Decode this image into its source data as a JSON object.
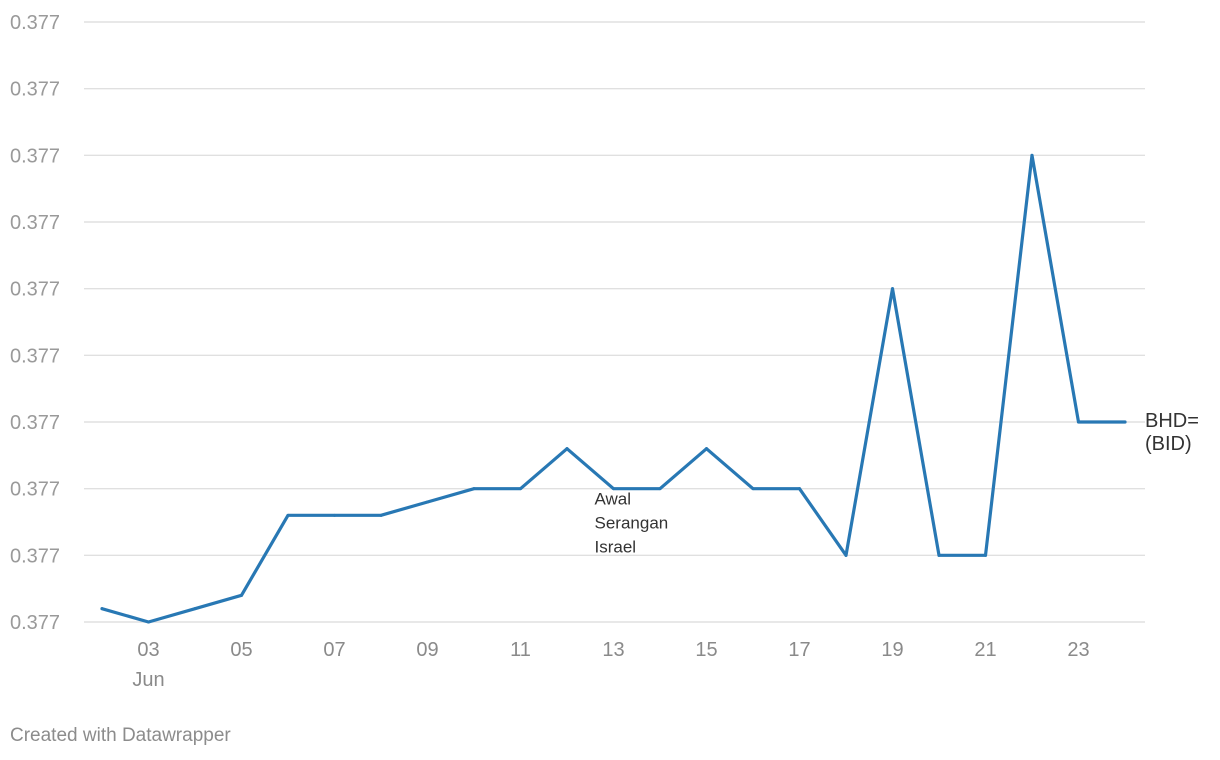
{
  "chart_data": {
    "type": "line",
    "title": "",
    "xlabel": "",
    "ylabel": "",
    "x": [
      "2024-06-02",
      "2024-06-03",
      "2024-06-04",
      "2024-06-05",
      "2024-06-06",
      "2024-06-07",
      "2024-06-08",
      "2024-06-09",
      "2024-06-10",
      "2024-06-11",
      "2024-06-12",
      "2024-06-13",
      "2024-06-14",
      "2024-06-15",
      "2024-06-16",
      "2024-06-17",
      "2024-06-18",
      "2024-06-19",
      "2024-06-20",
      "2024-06-21",
      "2024-06-22",
      "2024-06-23",
      "2024-06-24"
    ],
    "series": [
      {
        "name": "BHD= (BID)",
        "color": "#2878b4",
        "values": [
          0.37701,
          0.377,
          0.37701,
          0.37702,
          0.37708,
          0.37708,
          0.37708,
          0.37709,
          0.3771,
          0.3771,
          0.37713,
          0.3771,
          0.3771,
          0.37713,
          0.3771,
          0.3771,
          0.37705,
          0.37725,
          0.37705,
          0.37705,
          0.37735,
          0.37715,
          0.37715
        ]
      }
    ],
    "ylim": [
      0.377,
      0.37745
    ],
    "yticks": [
      0.377,
      0.37705,
      0.3771,
      0.37715,
      0.3772,
      0.37725,
      0.3773,
      0.37735,
      0.3774,
      0.37745
    ],
    "ytick_labels": [
      "0.377",
      "0.377",
      "0.377",
      "0.377",
      "0.377",
      "0.377",
      "0.377",
      "0.377",
      "0.377",
      "0.377"
    ],
    "xticks": [
      {
        "date": "2024-06-03",
        "label": "03",
        "sublabel": "Jun"
      },
      {
        "date": "2024-06-05",
        "label": "05"
      },
      {
        "date": "2024-06-07",
        "label": "07"
      },
      {
        "date": "2024-06-09",
        "label": "09"
      },
      {
        "date": "2024-06-11",
        "label": "11"
      },
      {
        "date": "2024-06-13",
        "label": "13"
      },
      {
        "date": "2024-06-15",
        "label": "15"
      },
      {
        "date": "2024-06-17",
        "label": "17"
      },
      {
        "date": "2024-06-19",
        "label": "19"
      },
      {
        "date": "2024-06-21",
        "label": "21"
      },
      {
        "date": "2024-06-23",
        "label": "23"
      }
    ],
    "annotations": [
      {
        "date": "2024-06-13",
        "y": 0.3771,
        "lines": [
          "Awal",
          "Serangan",
          "Israel"
        ]
      }
    ],
    "series_label_lines": [
      "BHD=",
      "(BID)"
    ],
    "grid": true,
    "legend": "none"
  },
  "footer": {
    "credit": "Created with Datawrapper"
  }
}
